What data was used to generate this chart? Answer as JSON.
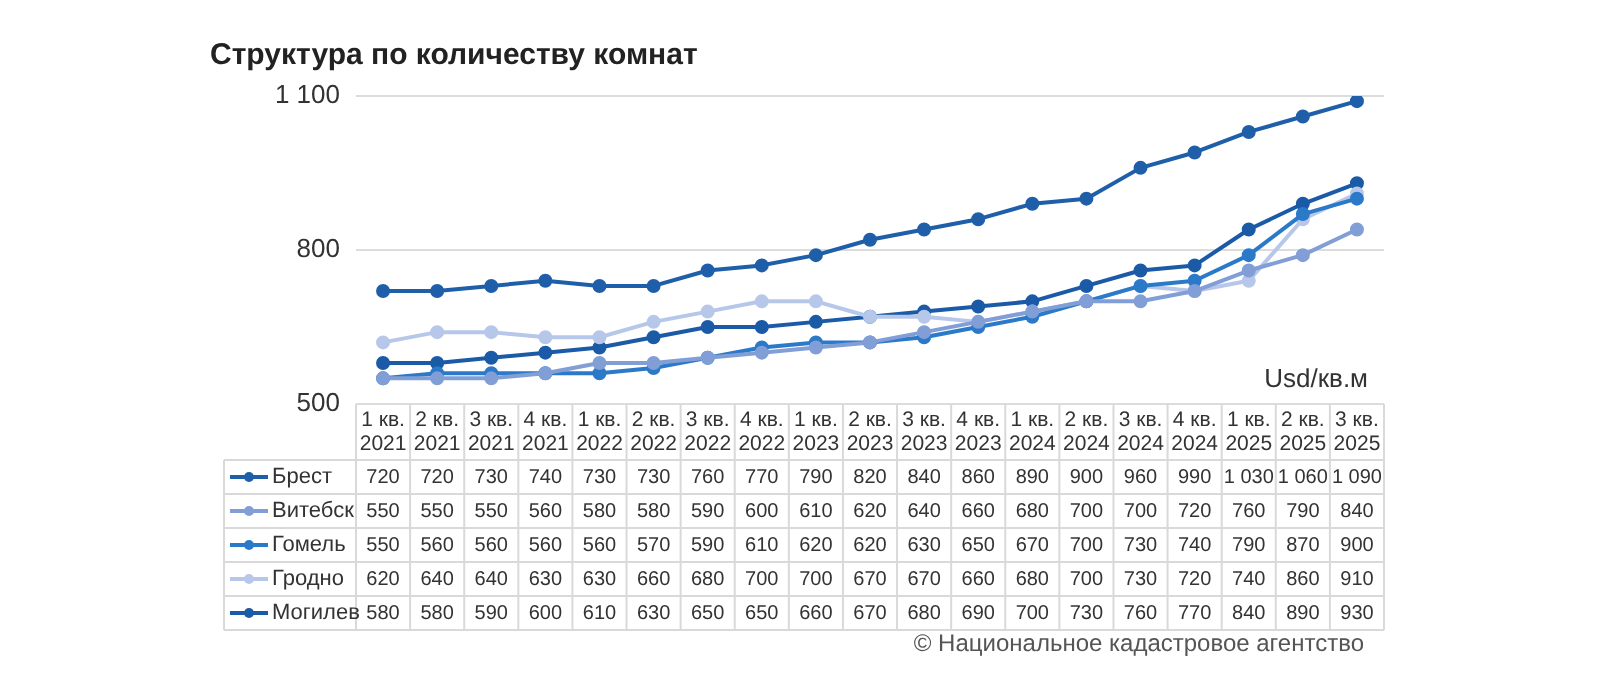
{
  "chart_data": {
    "type": "line",
    "title": "Структура по количеству комнат",
    "ylabel": "Usd/кв.м",
    "annotations": [
      "© Национальное кадастровое агентство"
    ],
    "categories": [
      "1 кв.\n2021",
      "2 кв.\n2021",
      "3 кв.\n2021",
      "4 кв.\n2021",
      "1 кв.\n2022",
      "2 кв.\n2022",
      "3 кв.\n2022",
      "4 кв.\n2022",
      "1 кв.\n2023",
      "2 кв.\n2023",
      "3 кв.\n2023",
      "4 кв.\n2023",
      "1 кв.\n2024",
      "2 кв.\n2024",
      "3 кв.\n2024",
      "4 кв.\n2024",
      "1 кв.\n2025",
      "2 кв.\n2025",
      "3 кв.\n2025"
    ],
    "series": [
      {
        "name": "Брест",
        "color": "#1f5ea8",
        "values": [
          720,
          720,
          730,
          740,
          730,
          730,
          760,
          770,
          790,
          820,
          840,
          860,
          890,
          900,
          960,
          990,
          1030,
          1060,
          1090
        ]
      },
      {
        "name": "Витебск",
        "color": "#819ed6",
        "values": [
          550,
          550,
          550,
          560,
          580,
          580,
          590,
          600,
          610,
          620,
          640,
          660,
          680,
          700,
          700,
          720,
          760,
          790,
          840
        ]
      },
      {
        "name": "Гомель",
        "color": "#2b79c9",
        "values": [
          550,
          560,
          560,
          560,
          560,
          570,
          590,
          610,
          620,
          620,
          630,
          650,
          670,
          700,
          730,
          740,
          790,
          870,
          900
        ]
      },
      {
        "name": "Гродно",
        "color": "#b7c7ea",
        "values": [
          620,
          640,
          640,
          630,
          630,
          660,
          680,
          700,
          700,
          670,
          670,
          660,
          680,
          700,
          730,
          720,
          740,
          860,
          910
        ]
      },
      {
        "name": "Могилев",
        "color": "#1a5aa6",
        "values": [
          580,
          580,
          590,
          600,
          610,
          630,
          650,
          650,
          660,
          670,
          680,
          690,
          700,
          730,
          760,
          770,
          840,
          890,
          930
        ]
      }
    ],
    "ylim": [
      500,
      1100
    ],
    "yticks": [
      500,
      800,
      {
        "value": 1100,
        "label": "1 100"
      }
    ],
    "grid": "y",
    "legend": "bottom",
    "marker": "circle",
    "line_style": "solid",
    "data_labels": true
  }
}
